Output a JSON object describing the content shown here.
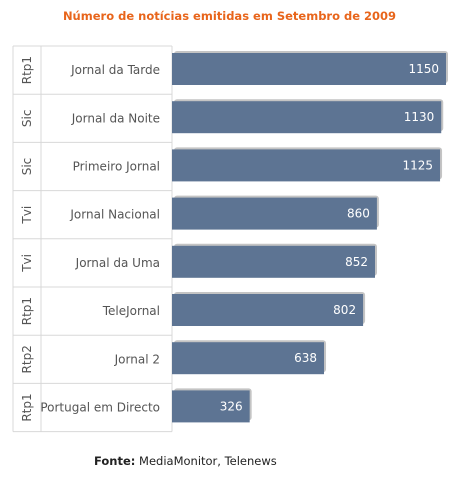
{
  "colors": {
    "title": "#e8651b",
    "bar": "#5d7493",
    "bar_shadow": "#c4c4c4",
    "grid": "#d8d8d8",
    "label": "#555555",
    "value": "#ffffff"
  },
  "chart_data": {
    "type": "bar",
    "orientation": "horizontal",
    "title": "Número de notícias emitidas em Setembro de 2009",
    "categories": [
      {
        "channel": "Rtp1",
        "program": "Jornal da Tarde"
      },
      {
        "channel": "Sic",
        "program": "Jornal da Noite"
      },
      {
        "channel": "Sic",
        "program": "Primeiro Jornal"
      },
      {
        "channel": "Tvi",
        "program": "Jornal Nacional"
      },
      {
        "channel": "Tvi",
        "program": "Jornal da Uma"
      },
      {
        "channel": "Rtp1",
        "program": "TeleJornal"
      },
      {
        "channel": "Rtp2",
        "program": "Jornal 2"
      },
      {
        "channel": "Rtp1",
        "program": "Portugal em Directo"
      }
    ],
    "values": [
      1150,
      1130,
      1125,
      860,
      852,
      802,
      638,
      326
    ],
    "xlim": [
      0,
      1150
    ],
    "grid": true,
    "legend": "none"
  },
  "source": {
    "label": "Fonte:",
    "text": "MediaMonitor, Telenews"
  }
}
